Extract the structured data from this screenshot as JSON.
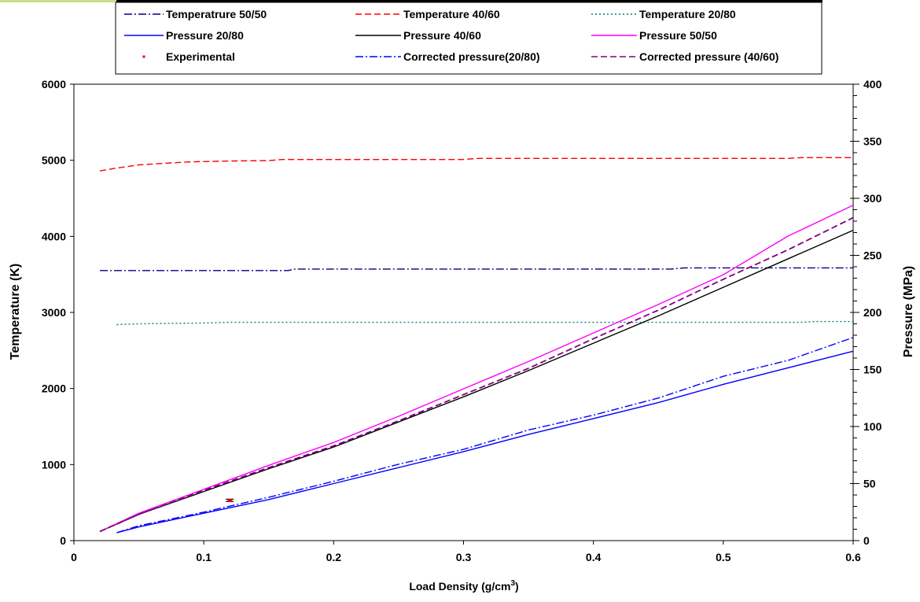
{
  "chart_data": {
    "type": "line",
    "xlabel": "Load Density (g/cm",
    "xlabel_sup": "3",
    "xlabel_tail": ")",
    "ylabel_left": "Temperature (K)",
    "ylabel_right": "Pressure (MPa)",
    "xlim": [
      0,
      0.6
    ],
    "ylim_left": [
      0,
      6000
    ],
    "ylim_right": [
      0,
      400
    ],
    "x_ticks": [
      "0",
      "0.1",
      "0.2",
      "0.3",
      "0.4",
      "0.5",
      "0.6"
    ],
    "x_tick_values": [
      0,
      0.1,
      0.2,
      0.3,
      0.4,
      0.5,
      0.6
    ],
    "y_left_ticks": [
      "0",
      "1000",
      "2000",
      "3000",
      "4000",
      "5000",
      "6000"
    ],
    "y_left_tick_values": [
      0,
      1000,
      2000,
      3000,
      4000,
      5000,
      6000
    ],
    "y_right_ticks": [
      "0",
      "50",
      "100",
      "150",
      "200",
      "250",
      "300",
      "350",
      "400"
    ],
    "y_right_tick_values": [
      0,
      50,
      100,
      150,
      200,
      250,
      300,
      350,
      400
    ],
    "grid": false,
    "legend_position": "top",
    "series": [
      {
        "name": "Temperatrure 50/50",
        "axis": "left",
        "color": "#000080",
        "dash": "dashdot",
        "points": [
          [
            0.02,
            3550
          ],
          [
            0.05,
            3550
          ],
          [
            0.1,
            3550
          ],
          [
            0.165,
            3550
          ],
          [
            0.17,
            3570
          ],
          [
            0.3,
            3570
          ],
          [
            0.46,
            3570
          ],
          [
            0.47,
            3585
          ],
          [
            0.6,
            3585
          ]
        ]
      },
      {
        "name": "Temperature 40/60",
        "axis": "left",
        "color": "#ff0000",
        "dash": "dashed",
        "points": [
          [
            0.02,
            4860
          ],
          [
            0.03,
            4890
          ],
          [
            0.05,
            4940
          ],
          [
            0.07,
            4960
          ],
          [
            0.09,
            4980
          ],
          [
            0.12,
            4990
          ],
          [
            0.15,
            4995
          ],
          [
            0.16,
            5010
          ],
          [
            0.3,
            5010
          ],
          [
            0.31,
            5025
          ],
          [
            0.55,
            5025
          ],
          [
            0.56,
            5035
          ],
          [
            0.6,
            5035
          ]
        ]
      },
      {
        "name": "Temperature 20/80",
        "axis": "left",
        "color": "#008080",
        "dash": "dotted",
        "points": [
          [
            0.033,
            2840
          ],
          [
            0.05,
            2850
          ],
          [
            0.07,
            2855
          ],
          [
            0.1,
            2860
          ],
          [
            0.12,
            2870
          ],
          [
            0.3,
            2870
          ],
          [
            0.56,
            2870
          ],
          [
            0.57,
            2880
          ],
          [
            0.6,
            2880
          ]
        ]
      },
      {
        "name": "Pressure 20/80",
        "axis": "right",
        "color": "#0000ff",
        "dash": "solid",
        "points": [
          [
            0.033,
            7
          ],
          [
            0.05,
            12
          ],
          [
            0.1,
            24
          ],
          [
            0.15,
            36
          ],
          [
            0.2,
            50
          ],
          [
            0.25,
            64
          ],
          [
            0.3,
            78
          ],
          [
            0.35,
            93
          ],
          [
            0.4,
            107
          ],
          [
            0.45,
            121
          ],
          [
            0.5,
            137
          ],
          [
            0.6,
            166
          ]
        ]
      },
      {
        "name": "Pressure 40/60",
        "axis": "right",
        "color": "#000000",
        "dash": "solid",
        "points": [
          [
            0.02,
            8
          ],
          [
            0.05,
            23
          ],
          [
            0.1,
            43
          ],
          [
            0.15,
            63
          ],
          [
            0.2,
            82
          ],
          [
            0.25,
            104
          ],
          [
            0.3,
            126
          ],
          [
            0.35,
            149
          ],
          [
            0.4,
            173
          ],
          [
            0.45,
            197
          ],
          [
            0.5,
            222
          ],
          [
            0.55,
            247
          ],
          [
            0.6,
            272
          ]
        ]
      },
      {
        "name": "Pressure 50/50",
        "axis": "right",
        "color": "#ff00ff",
        "dash": "solid",
        "points": [
          [
            0.02,
            8
          ],
          [
            0.05,
            24
          ],
          [
            0.1,
            45
          ],
          [
            0.15,
            66
          ],
          [
            0.2,
            86
          ],
          [
            0.25,
            109
          ],
          [
            0.3,
            133
          ],
          [
            0.35,
            157
          ],
          [
            0.4,
            182
          ],
          [
            0.45,
            207
          ],
          [
            0.5,
            233
          ],
          [
            0.55,
            267
          ],
          [
            0.6,
            294
          ]
        ]
      },
      {
        "name": "Experimental",
        "axis": "left",
        "color": "#ff0000",
        "dash": "marker",
        "points": [
          [
            0.12,
            530
          ]
        ],
        "error": 30
      },
      {
        "name": "Corrected pressure(20/80)",
        "axis": "right",
        "color": "#0000ff",
        "dash": "dashdot",
        "points": [
          [
            0.033,
            7
          ],
          [
            0.05,
            13
          ],
          [
            0.1,
            25
          ],
          [
            0.15,
            38
          ],
          [
            0.2,
            52
          ],
          [
            0.25,
            67
          ],
          [
            0.3,
            80
          ],
          [
            0.35,
            97
          ],
          [
            0.4,
            110
          ],
          [
            0.45,
            125
          ],
          [
            0.5,
            144
          ],
          [
            0.55,
            158
          ],
          [
            0.6,
            178
          ]
        ]
      },
      {
        "name": "Corrected pressure (40/60)",
        "axis": "right",
        "color": "#800080",
        "dash": "dashed",
        "points": [
          [
            0.02,
            8
          ],
          [
            0.05,
            23
          ],
          [
            0.1,
            44
          ],
          [
            0.15,
            64
          ],
          [
            0.2,
            83
          ],
          [
            0.25,
            105
          ],
          [
            0.3,
            128
          ],
          [
            0.35,
            151
          ],
          [
            0.4,
            177
          ],
          [
            0.45,
            202
          ],
          [
            0.5,
            229
          ],
          [
            0.55,
            255
          ],
          [
            0.6,
            283
          ]
        ]
      }
    ]
  }
}
